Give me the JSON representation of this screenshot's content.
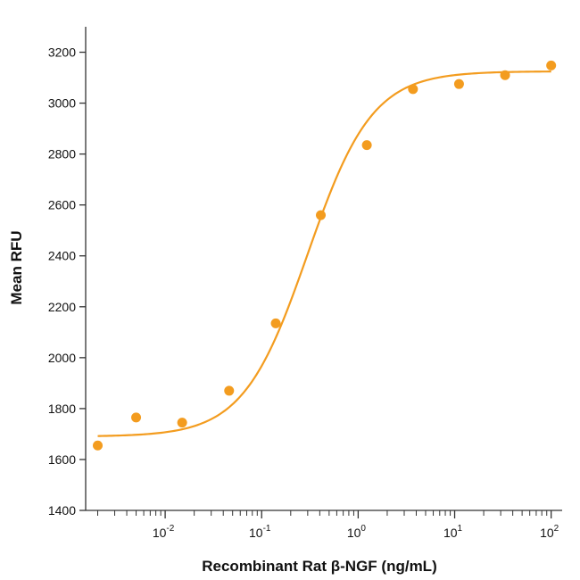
{
  "chart_data": {
    "type": "scatter",
    "xlabel": "Recombinant Rat β-NGF (ng/mL)",
    "ylabel": "Mean RFU",
    "x_scale": "log",
    "xlim": [
      0.0015,
      130
    ],
    "ylim": [
      1400,
      3300
    ],
    "x_ticks": [
      {
        "value": 0.01,
        "base": "10",
        "exp": "-2"
      },
      {
        "value": 0.1,
        "base": "10",
        "exp": "-1"
      },
      {
        "value": 1,
        "base": "10",
        "exp": "0"
      },
      {
        "value": 10,
        "base": "10",
        "exp": "1"
      },
      {
        "value": 100,
        "base": "10",
        "exp": "2"
      }
    ],
    "y_ticks": [
      "1400",
      "1600",
      "1800",
      "2000",
      "2200",
      "2400",
      "2600",
      "2800",
      "3000",
      "3200"
    ],
    "grid": false,
    "series": [
      {
        "color": "#f39c1f",
        "points": [
          {
            "x": 0.002,
            "y": 1655
          },
          {
            "x": 0.005,
            "y": 1765
          },
          {
            "x": 0.015,
            "y": 1745
          },
          {
            "x": 0.046,
            "y": 1870
          },
          {
            "x": 0.14,
            "y": 2135
          },
          {
            "x": 0.41,
            "y": 2560
          },
          {
            "x": 1.23,
            "y": 2835
          },
          {
            "x": 3.7,
            "y": 3055
          },
          {
            "x": 11.1,
            "y": 3075
          },
          {
            "x": 33.3,
            "y": 3110
          },
          {
            "x": 100,
            "y": 3148
          }
        ],
        "fit": {
          "bottom": 1690,
          "top": 3125,
          "ec50": 0.3,
          "hill": 1.3
        }
      }
    ]
  }
}
